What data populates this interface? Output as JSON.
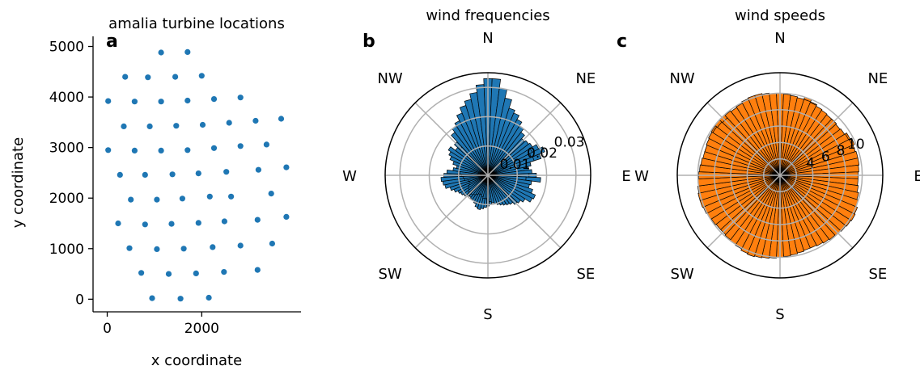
{
  "chart_data": [
    {
      "type": "scatter",
      "panel": "a",
      "title": "amalia turbine locations",
      "xlabel": "x coordinate",
      "ylabel": "y coordinate",
      "xlim": [
        -300,
        4100
      ],
      "ylim": [
        -250,
        5200
      ],
      "xticks": [
        0,
        2000
      ],
      "yticks": [
        0,
        1000,
        2000,
        3000,
        4000,
        5000
      ],
      "color": "#1f77b4",
      "x": [
        1140,
        1700,
        380,
        860,
        1440,
        2000,
        20,
        580,
        1140,
        1700,
        2260,
        2820,
        350,
        900,
        1460,
        2020,
        2580,
        3140,
        3680,
        20,
        580,
        1140,
        1700,
        2260,
        2820,
        3370,
        270,
        800,
        1380,
        1930,
        2520,
        3200,
        3790,
        500,
        1050,
        1590,
        2170,
        2620,
        3470,
        230,
        800,
        1360,
        1930,
        2480,
        3180,
        3790,
        470,
        1050,
        1620,
        2230,
        2820,
        3490,
        720,
        1300,
        1880,
        2470,
        3180,
        950,
        1550,
        2150
      ],
      "y": [
        4880,
        4890,
        4400,
        4390,
        4400,
        4420,
        3920,
        3910,
        3910,
        3930,
        3960,
        3990,
        3420,
        3420,
        3430,
        3450,
        3490,
        3530,
        3570,
        2950,
        2940,
        2940,
        2950,
        2990,
        3030,
        3060,
        2460,
        2460,
        2470,
        2490,
        2520,
        2560,
        2610,
        1970,
        1970,
        1990,
        2030,
        2030,
        2090,
        1500,
        1480,
        1490,
        1510,
        1540,
        1570,
        1630,
        1010,
        990,
        1000,
        1030,
        1060,
        1100,
        520,
        500,
        510,
        540,
        580,
        20,
        10,
        30
      ]
    },
    {
      "type": "bar",
      "panel": "b",
      "projection": "polar",
      "title": "wind frequencies",
      "rlim": [
        0,
        0.035
      ],
      "rticks": [
        0.01,
        0.02,
        0.03
      ],
      "rtick_labels": [
        "0.01",
        "0.02",
        "0.03"
      ],
      "direction_labels": [
        "N",
        "NE",
        "E",
        "SE",
        "S",
        "SW",
        "W",
        "NW"
      ],
      "color": "#1f77b4",
      "bin_width_deg": 5,
      "values": [
        0.009,
        0.0095,
        0.01,
        0.0105,
        0.011,
        0.0115,
        0.0105,
        0.011,
        0.012,
        0.013,
        0.0145,
        0.017,
        0.0195,
        0.021,
        0.019,
        0.015,
        0.013,
        0.014,
        0.0165,
        0.018,
        0.015,
        0.012,
        0.01,
        0.0085,
        0.0075,
        0.006,
        0.0055,
        0.005,
        0.0055,
        0.006,
        0.0065,
        0.007,
        0.0075,
        0.0085,
        0.0095,
        0.01,
        0.0105,
        0.011,
        0.0115,
        0.012,
        0.0115,
        0.0105,
        0.01,
        0.0098,
        0.0095,
        0.01,
        0.0105,
        0.011,
        0.0115,
        0.0125,
        0.0135,
        0.015,
        0.0155,
        0.016,
        0.015,
        0.014,
        0.012,
        0.0105,
        0.009,
        0.0085,
        0.0095,
        0.011,
        0.013,
        0.0155,
        0.0185,
        0.02,
        0.021,
        0.023,
        0.025,
        0.0265,
        0.0285,
        0.031,
        0.033,
        0.033,
        0.03,
        0.027,
        0.024,
        0.023,
        0.0215,
        0.02,
        0.0185,
        0.017,
        0.0175,
        0.018,
        0.017,
        0.016,
        0.0165,
        0.015,
        0.014,
        0.015,
        0.014,
        0.013,
        0.015,
        0.0145,
        0.016,
        0.0175,
        0.017,
        0.015,
        0.014,
        0.0135,
        0.0125,
        0.012,
        0.0115,
        0.011,
        0.0105,
        0.01,
        0.0095,
        0.009,
        0.0085,
        0.008,
        0.008,
        0.0075,
        0.007,
        0.007,
        0.0075,
        0.008,
        0.0085,
        0.009,
        0.0085,
        0.008,
        0.0075,
        0.007,
        0.0065,
        0.007,
        0.008,
        0.0085,
        0.009,
        0.0095,
        0.01,
        0.011,
        0.0125,
        0.014,
        0.015,
        0.016,
        0.014,
        0.013
      ]
    },
    {
      "type": "bar",
      "panel": "c",
      "projection": "polar",
      "title": "wind speeds",
      "rlim": [
        0,
        12.5
      ],
      "rticks": [
        2,
        4,
        6,
        8,
        10
      ],
      "rtick_labels": [
        "",
        "4",
        "6",
        "8",
        "10"
      ],
      "direction_labels": [
        "N",
        "NE",
        "E",
        "SE",
        "S",
        "SW",
        "W",
        "NW"
      ],
      "color": "#ff7f0e",
      "bin_width_deg": 5,
      "values": [
        9.5,
        9.6,
        9.0,
        9.4,
        10.0,
        9.7,
        9.2,
        9.0,
        8.9,
        9.3,
        9.1,
        8.8,
        9.6,
        9.8,
        9.5,
        9.0,
        9.2,
        9.3,
        8.9,
        8.5,
        8.2,
        7.5,
        6.5,
        5.5,
        5.0,
        4.5,
        4.0,
        3.5,
        3.2,
        3.0,
        3.1,
        3.3,
        3.6,
        4.0,
        4.4,
        4.8,
        5.3,
        5.9,
        6.5,
        7.0,
        7.5,
        7.8,
        8.0,
        8.2,
        8.4,
        8.6,
        8.7,
        8.8,
        8.9,
        9.0,
        9.2,
        9.3,
        9.4,
        9.3,
        9.2,
        9.2,
        9.3,
        9.5,
        9.6,
        9.7,
        9.8,
        9.9,
        10.0,
        10.0,
        9.9,
        9.8,
        9.9,
        10.1,
        10.2,
        10.2,
        10.1,
        10.0,
        10.0,
        9.9,
        9.8,
        9.7,
        9.7,
        9.6,
        9.5,
        9.4,
        9.3,
        9.3,
        9.2,
        9.3,
        9.4,
        9.5,
        9.6,
        9.7,
        9.7,
        9.6,
        9.5,
        9.5,
        9.6,
        9.8,
        10.0,
        10.2,
        10.3,
        10.2,
        10.1,
        10.0,
        9.9,
        9.8,
        9.7,
        9.6,
        9.6,
        9.7,
        9.8,
        9.9,
        10.0,
        10.1,
        10.2,
        10.3,
        10.4,
        10.3,
        10.1,
        10.0,
        9.9,
        9.8,
        9.8,
        9.9,
        10.0,
        10.1,
        10.2,
        10.2,
        10.1,
        10.0,
        9.9,
        9.8,
        9.7,
        9.6,
        9.6,
        9.7,
        9.8,
        9.7,
        9.6,
        9.5
      ]
    }
  ]
}
